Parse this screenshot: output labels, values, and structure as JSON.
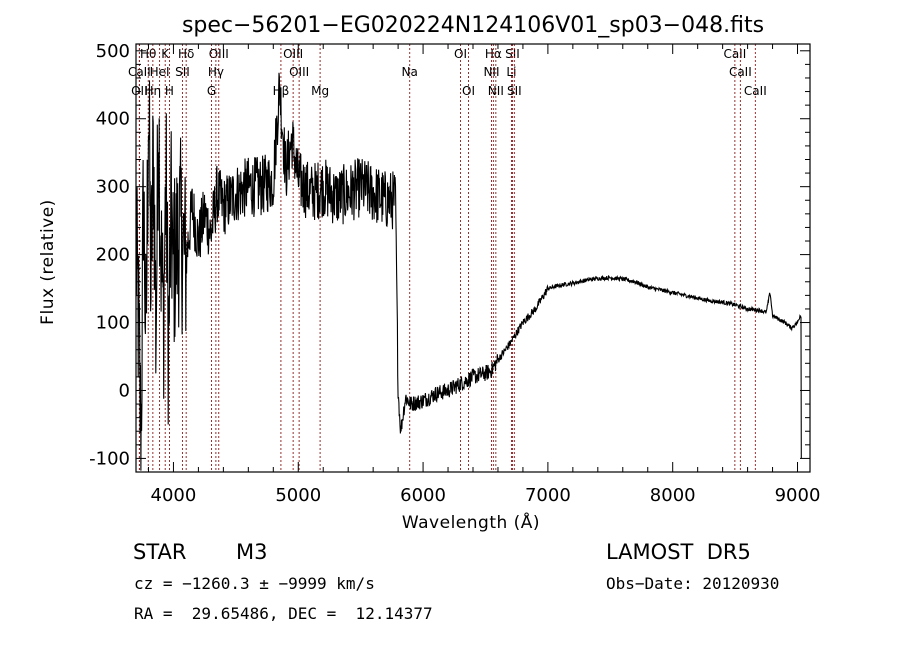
{
  "chart_data": {
    "type": "line",
    "title": "spec−56201−EG020224N124106V01_sp03−048.fits",
    "xlabel": "Wavelength (Å)",
    "ylabel": "Flux (relative)",
    "xlim": [
      3700,
      9100
    ],
    "ylim": [
      -120,
      510
    ],
    "xticks": [
      4000,
      5000,
      6000,
      7000,
      8000,
      9000
    ],
    "yticks": [
      -100,
      0,
      100,
      200,
      300,
      400,
      500
    ],
    "grid": false,
    "spectrum_anchors": [
      [
        3700,
        210
      ],
      [
        3720,
        100
      ],
      [
        3740,
        -80
      ],
      [
        3760,
        300
      ],
      [
        3780,
        60
      ],
      [
        3800,
        440
      ],
      [
        3820,
        150
      ],
      [
        3840,
        360
      ],
      [
        3860,
        80
      ],
      [
        3880,
        420
      ],
      [
        3900,
        200
      ],
      [
        3920,
        100
      ],
      [
        3940,
        320
      ],
      [
        3960,
        60
      ],
      [
        3980,
        250
      ],
      [
        4000,
        180
      ],
      [
        4050,
        240
      ],
      [
        4100,
        190
      ],
      [
        4150,
        270
      ],
      [
        4200,
        220
      ],
      [
        4250,
        260
      ],
      [
        4300,
        230
      ],
      [
        4350,
        290
      ],
      [
        4400,
        270
      ],
      [
        4500,
        290
      ],
      [
        4600,
        300
      ],
      [
        4700,
        300
      ],
      [
        4800,
        310
      ],
      [
        4850,
        450
      ],
      [
        4900,
        320
      ],
      [
        4950,
        370
      ],
      [
        5000,
        310
      ],
      [
        5100,
        290
      ],
      [
        5200,
        300
      ],
      [
        5300,
        285
      ],
      [
        5400,
        290
      ],
      [
        5500,
        300
      ],
      [
        5600,
        290
      ],
      [
        5700,
        280
      ],
      [
        5780,
        280
      ],
      [
        5800,
        0
      ],
      [
        5820,
        -60
      ],
      [
        5860,
        -10
      ],
      [
        5900,
        -20
      ],
      [
        6000,
        -15
      ],
      [
        6100,
        -5
      ],
      [
        6200,
        0
      ],
      [
        6300,
        10
      ],
      [
        6400,
        20
      ],
      [
        6500,
        25
      ],
      [
        6550,
        30
      ],
      [
        6600,
        45
      ],
      [
        6700,
        70
      ],
      [
        6800,
        100
      ],
      [
        6900,
        120
      ],
      [
        7000,
        150
      ],
      [
        7100,
        155
      ],
      [
        7200,
        158
      ],
      [
        7300,
        162
      ],
      [
        7400,
        165
      ],
      [
        7500,
        166
      ],
      [
        7600,
        164
      ],
      [
        7700,
        160
      ],
      [
        7800,
        152
      ],
      [
        7900,
        148
      ],
      [
        8000,
        144
      ],
      [
        8100,
        140
      ],
      [
        8200,
        136
      ],
      [
        8300,
        132
      ],
      [
        8400,
        130
      ],
      [
        8500,
        126
      ],
      [
        8600,
        120
      ],
      [
        8700,
        118
      ],
      [
        8750,
        115
      ],
      [
        8780,
        145
      ],
      [
        8800,
        110
      ],
      [
        8900,
        100
      ],
      [
        8950,
        92
      ],
      [
        9000,
        100
      ],
      [
        9020,
        110
      ],
      [
        9030,
        110
      ]
    ],
    "lines": [
      {
        "label": "Hθ",
        "x": 3798,
        "row": 1
      },
      {
        "label": "K",
        "x": 3934,
        "row": 1
      },
      {
        "label": "Hδ",
        "x": 4102,
        "row": 1
      },
      {
        "label": "OIII",
        "x": 4363,
        "row": 1
      },
      {
        "label": "OIII",
        "x": 4959,
        "row": 1
      },
      {
        "label": "OI",
        "x": 6300,
        "row": 1
      },
      {
        "label": "Hα",
        "x": 6563,
        "row": 1
      },
      {
        "label": "SII",
        "x": 6716,
        "row": 1
      },
      {
        "label": "CaII",
        "x": 8498,
        "row": 1
      },
      {
        "label": "CaII",
        "x": 3727,
        "row": 2
      },
      {
        "label": "HeI",
        "x": 3889,
        "row": 2
      },
      {
        "label": "SII",
        "x": 4072,
        "row": 2
      },
      {
        "label": "Hγ",
        "x": 4340,
        "row": 2
      },
      {
        "label": "OIII",
        "x": 5007,
        "row": 2
      },
      {
        "label": "Na",
        "x": 5893,
        "row": 2
      },
      {
        "label": "NII",
        "x": 6548,
        "row": 2
      },
      {
        "label": "Li",
        "x": 6708,
        "row": 2
      },
      {
        "label": "CaII",
        "x": 8542,
        "row": 2
      },
      {
        "label": "OII",
        "x": 3727,
        "row": 3
      },
      {
        "label": "Hη",
        "x": 3835,
        "row": 3
      },
      {
        "label": "H",
        "x": 3968,
        "row": 3
      },
      {
        "label": "G",
        "x": 4305,
        "row": 3
      },
      {
        "label": "Hβ",
        "x": 4861,
        "row": 3
      },
      {
        "label": "Mg",
        "x": 5175,
        "row": 3
      },
      {
        "label": "OI",
        "x": 6364,
        "row": 3
      },
      {
        "label": "NII",
        "x": 6583,
        "row": 3
      },
      {
        "label": "SII",
        "x": 6731,
        "row": 3
      },
      {
        "label": "CaII",
        "x": 8662,
        "row": 3
      }
    ]
  },
  "info": {
    "class_label": "STAR",
    "subclass": "M3",
    "survey": "LAMOST  DR5",
    "cz": "cz = −1260.3 ± −9999 km/s",
    "obs_date": "Obs−Date: 20120930",
    "radec": "RA =  29.65486, DEC =  12.14377"
  },
  "colors": {
    "spectrum": "#000000",
    "line_markers": "#8b1a1a"
  }
}
